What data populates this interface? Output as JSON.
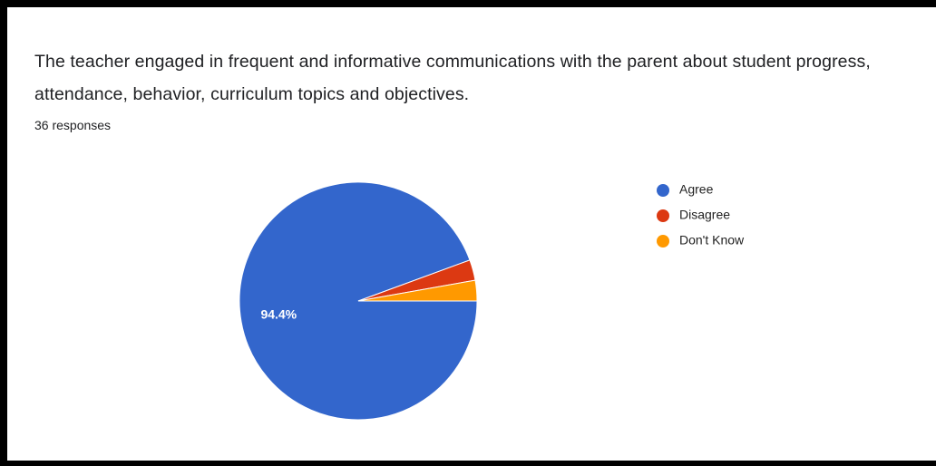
{
  "chart_data": {
    "type": "pie",
    "title": "The teacher engaged in frequent and informative communications with the parent about student progress, attendance, behavior, curriculum topics and objectives.",
    "subtitle": "36 responses",
    "categories": [
      "Agree",
      "Disagree",
      "Don't Know"
    ],
    "values": [
      94.4,
      2.8,
      2.8
    ],
    "value_labels": [
      "94.4%",
      null,
      null
    ],
    "colors": [
      "#3366cc",
      "#dc3912",
      "#ff9900"
    ],
    "legend": "right"
  }
}
